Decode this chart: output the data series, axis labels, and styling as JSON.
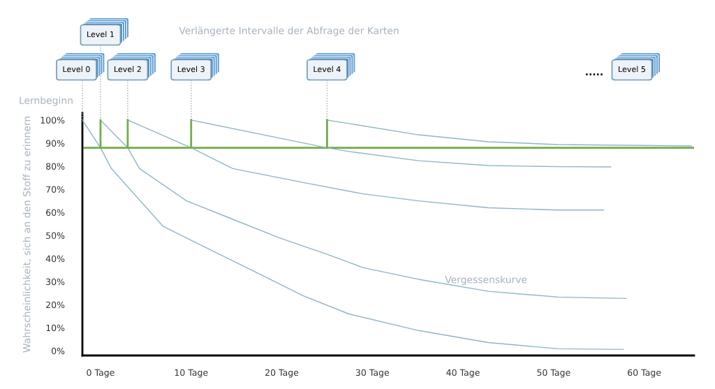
{
  "chart_data": {
    "type": "line",
    "title": "Verlängerte Intervalle der Abfrage der Karten",
    "ylabel": "Wahrscheinlichkeit, sich an den Stoff zu erinnern",
    "xlim": [
      -2,
      65.5
    ],
    "ylim": [
      -2,
      103
    ],
    "xticks": [
      {
        "value": 0,
        "label": "0 Tage"
      },
      {
        "value": 10,
        "label": "10 Tage"
      },
      {
        "value": 20,
        "label": "20 Tage"
      },
      {
        "value": 30,
        "label": "30 Tage"
      },
      {
        "value": 40,
        "label": "40 Tage"
      },
      {
        "value": 50,
        "label": "50 Tage"
      },
      {
        "value": 60,
        "label": "60 Tage"
      }
    ],
    "yticks": [
      {
        "value": 0,
        "label": "0%"
      },
      {
        "value": 10,
        "label": "10%"
      },
      {
        "value": 20,
        "label": "20%"
      },
      {
        "value": 30,
        "label": "30%"
      },
      {
        "value": 40,
        "label": "40%"
      },
      {
        "value": 50,
        "label": "50%"
      },
      {
        "value": 60,
        "label": "60%"
      },
      {
        "value": 70,
        "label": "70%"
      },
      {
        "value": 80,
        "label": "80%"
      },
      {
        "value": 90,
        "label": "90%"
      },
      {
        "value": 100,
        "label": "100%"
      }
    ],
    "grid": false,
    "legend": false,
    "marker": "none",
    "line_style": "solid",
    "series": [
      {
        "color": "#8fb4c8",
        "x": [
          -2,
          0,
          1.2,
          6.9,
          12,
          17.2,
          22.3,
          27.4,
          35.1,
          42.8,
          50.5,
          57.7
        ],
        "values": [
          100,
          88,
          79,
          54,
          44,
          34,
          24,
          16,
          8.8,
          3.6,
          0.9,
          0.6
        ]
      },
      {
        "color": "#8fb4c8",
        "x": [
          0,
          3,
          4.3,
          9.5,
          14.6,
          19.7,
          24.9,
          29,
          35.1,
          42.8,
          50.5,
          58
        ],
        "values": [
          100,
          88,
          79,
          65,
          57,
          49,
          42,
          36,
          31,
          25.8,
          23.3,
          22.7
        ]
      },
      {
        "color": "#8fb4c8",
        "x": [
          3,
          10,
          14.6,
          22.3,
          29,
          35.1,
          42.8,
          50.5,
          55.5
        ],
        "values": [
          100,
          88,
          79,
          73,
          68,
          65,
          62,
          61,
          61
        ]
      },
      {
        "color": "#8fb4c8",
        "x": [
          10,
          25,
          27.4,
          35.1,
          42.8,
          50.5,
          56.3
        ],
        "values": [
          100,
          88,
          86.4,
          82.4,
          80.3,
          79.8,
          79.7
        ]
      },
      {
        "color": "#8fb4c8",
        "x": [
          25,
          27.4,
          35.1,
          42.8,
          50.5,
          65.2
        ],
        "values": [
          100,
          98.5,
          93.6,
          90.6,
          89.4,
          88.8
        ]
      },
      {
        "color": "#70ad47",
        "x": [
          0,
          0
        ],
        "values": [
          88,
          100
        ]
      },
      {
        "color": "#70ad47",
        "x": [
          3,
          3
        ],
        "values": [
          88,
          100
        ]
      },
      {
        "color": "#70ad47",
        "x": [
          10,
          10
        ],
        "values": [
          88,
          100
        ]
      },
      {
        "color": "#70ad47",
        "x": [
          25,
          25
        ],
        "values": [
          88,
          100
        ]
      }
    ],
    "ref_lines": [
      {
        "axis": "y",
        "value": 88,
        "color": "#70ad47"
      }
    ],
    "annotations": [
      "Lernbeginn",
      {
        "text": "Level 0",
        "x": -2,
        "y": 100
      },
      {
        "text": "Level 1",
        "x": 0,
        "y": 100
      },
      {
        "text": "Level 2",
        "x": 3,
        "y": 100
      },
      {
        "text": "Level 3",
        "x": 10,
        "y": 100
      },
      {
        "text": "Level 4",
        "x": 25,
        "y": 100
      },
      ".....",
      "Level 5",
      "Vergessenskurve"
    ]
  }
}
